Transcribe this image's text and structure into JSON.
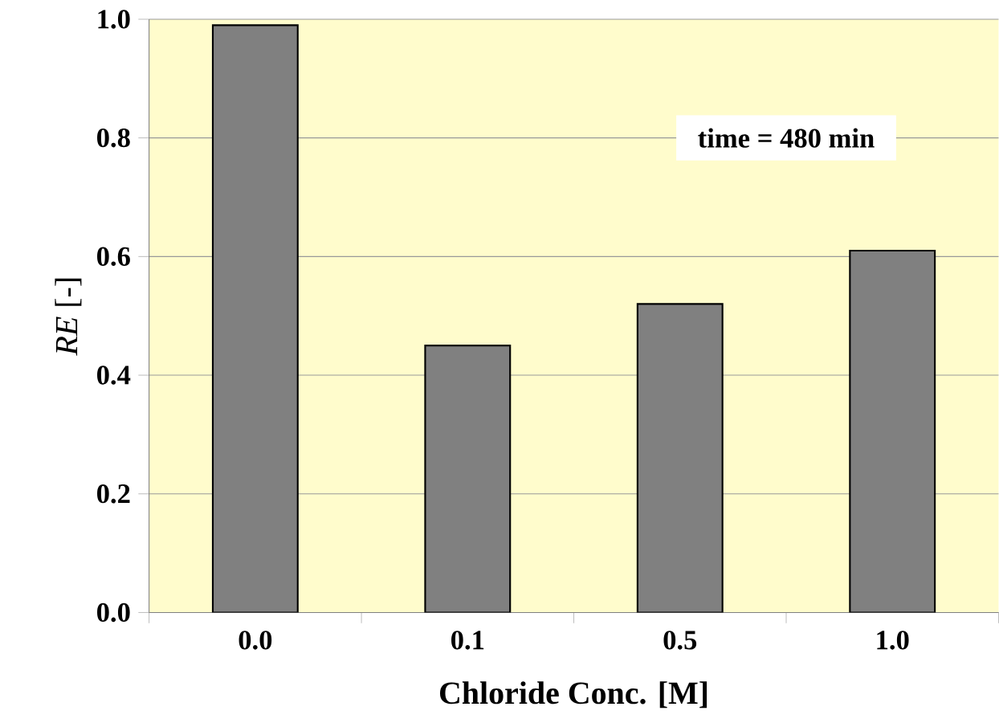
{
  "chart_data": {
    "type": "bar",
    "categories": [
      "0.0",
      "0.1",
      "0.5",
      "1.0"
    ],
    "values": [
      0.99,
      0.45,
      0.52,
      0.61
    ],
    "color": "#808080",
    "xlabel": "Chloride Conc. [M]",
    "ylabel": "*RE* [-]",
    "ylim": [
      0,
      1.0
    ],
    "yticks": [
      {
        "value": 0,
        "label": "0.0"
      },
      0.2,
      0.4,
      0.6,
      0.8,
      {
        "value": 1,
        "label": "1.0"
      }
    ],
    "grid": "y",
    "annotations": [
      "time = 480 min"
    ]
  }
}
